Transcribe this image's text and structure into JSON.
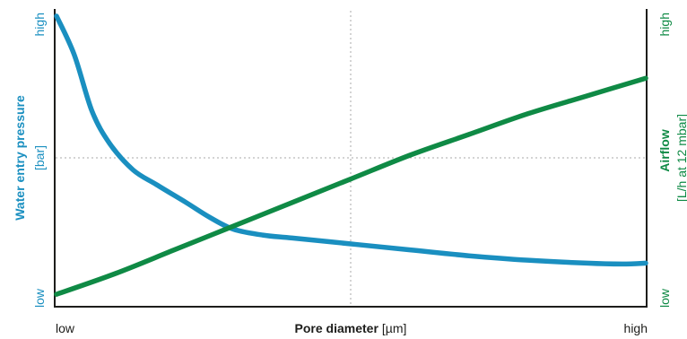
{
  "chart_data": {
    "type": "line",
    "x_axis": {
      "label_bold": "Pore diameter",
      "label_unit": "[µm]",
      "tick_low": "low",
      "tick_high": "high",
      "range": [
        0,
        1
      ]
    },
    "y_left": {
      "label_bold": "Water entry pressure",
      "label_unit": "[bar]",
      "tick_low": "low",
      "tick_high": "high",
      "range": [
        0,
        1
      ]
    },
    "y_right": {
      "label_bold": "Airflow",
      "label_unit": "[L/h at 12 mbar]",
      "tick_low": "low",
      "tick_high": "high",
      "range": [
        0,
        1
      ]
    },
    "grid": "dotted center lines",
    "series": [
      {
        "axis": "left",
        "color": "#1a8fc0",
        "x": [
          0.0,
          0.03,
          0.06,
          0.09,
          0.13,
          0.17,
          0.22,
          0.26,
          0.3,
          0.35,
          0.4,
          0.5,
          0.6,
          0.7,
          0.8,
          0.9,
          0.96,
          1.0
        ],
        "y": [
          0.97,
          0.84,
          0.65,
          0.54,
          0.45,
          0.4,
          0.34,
          0.29,
          0.25,
          0.23,
          0.22,
          0.2,
          0.18,
          0.16,
          0.145,
          0.135,
          0.132,
          0.135
        ]
      },
      {
        "axis": "right",
        "color": "#0f8a45",
        "x": [
          0.0,
          0.1,
          0.2,
          0.3,
          0.4,
          0.5,
          0.6,
          0.7,
          0.8,
          0.9,
          1.0
        ],
        "y": [
          0.03,
          0.1,
          0.18,
          0.26,
          0.34,
          0.42,
          0.5,
          0.57,
          0.64,
          0.7,
          0.76
        ]
      }
    ]
  }
}
